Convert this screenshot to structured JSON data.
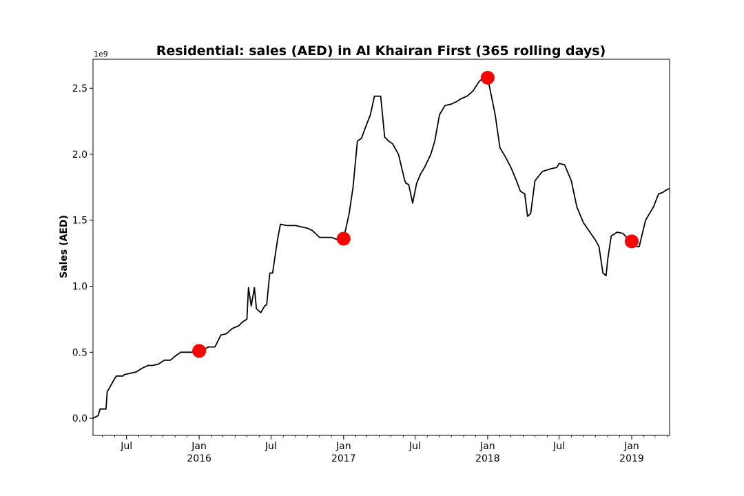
{
  "chart_data": {
    "type": "line",
    "title": "Residential: sales (AED) in Al Khairan First (365 rolling days)",
    "xlabel": "",
    "ylabel": "Sales (AED)",
    "y_scale_label": "1e9",
    "ylim": [
      -0.13,
      2.72
    ],
    "xlim": [
      "2015-04-07",
      "2019-04-07"
    ],
    "y_ticks": [
      0.0,
      0.5,
      1.0,
      1.5,
      2.0,
      2.5
    ],
    "y_tick_labels": [
      "0.0",
      "0.5",
      "1.0",
      "1.5",
      "2.0",
      "2.5"
    ],
    "x_ticks": [
      {
        "date": "2015-07-01",
        "label": "Jul",
        "sublabel": ""
      },
      {
        "date": "2016-01-01",
        "label": "Jan",
        "sublabel": "2016"
      },
      {
        "date": "2016-07-01",
        "label": "Jul",
        "sublabel": ""
      },
      {
        "date": "2017-01-01",
        "label": "Jan",
        "sublabel": "2017"
      },
      {
        "date": "2017-07-01",
        "label": "Jul",
        "sublabel": ""
      },
      {
        "date": "2018-01-01",
        "label": "Jan",
        "sublabel": "2018"
      },
      {
        "date": "2018-07-01",
        "label": "Jul",
        "sublabel": ""
      },
      {
        "date": "2019-01-01",
        "label": "Jan",
        "sublabel": "2019"
      }
    ],
    "grid": false,
    "line_color": "#000000",
    "marker_color": "#ff0000",
    "series": [
      {
        "x": [
          "2015-04-07",
          "2015-04-20",
          "2015-04-25",
          "2015-05-10",
          "2015-05-13",
          "2015-05-28",
          "2015-06-01",
          "2015-06-05",
          "2015-06-10",
          "2015-06-22",
          "2015-06-25",
          "2015-07-25",
          "2015-08-10",
          "2015-08-25",
          "2015-09-05",
          "2015-09-20",
          "2015-10-05",
          "2015-10-20",
          "2015-11-01",
          "2015-11-15",
          "2015-12-01",
          "2015-12-20",
          "2016-01-05",
          "2016-01-25",
          "2016-02-10",
          "2016-02-25",
          "2016-03-10",
          "2016-03-25",
          "2016-04-10",
          "2016-04-20",
          "2016-05-01",
          "2016-05-05",
          "2016-05-12",
          "2016-05-20",
          "2016-05-25",
          "2016-06-05",
          "2016-06-15",
          "2016-06-20",
          "2016-06-28",
          "2016-07-05",
          "2016-07-10",
          "2016-07-18",
          "2016-07-25",
          "2016-08-10",
          "2016-09-01",
          "2016-10-01",
          "2016-10-15",
          "2016-11-01",
          "2016-12-01",
          "2016-12-20",
          "2017-01-01",
          "2017-01-15",
          "2017-01-25",
          "2017-02-05",
          "2017-02-15",
          "2017-02-25",
          "2017-03-10",
          "2017-03-20",
          "2017-04-05",
          "2017-04-15",
          "2017-04-25",
          "2017-05-05",
          "2017-05-20",
          "2017-06-05",
          "2017-06-08",
          "2017-06-15",
          "2017-06-25",
          "2017-07-05",
          "2017-07-15",
          "2017-07-25",
          "2017-08-10",
          "2017-08-20",
          "2017-09-01",
          "2017-09-15",
          "2017-10-01",
          "2017-10-15",
          "2017-10-25",
          "2017-11-10",
          "2017-11-25",
          "2017-12-10",
          "2017-12-25",
          "2018-01-01",
          "2018-01-20",
          "2018-02-01",
          "2018-02-15",
          "2018-03-01",
          "2018-03-15",
          "2018-03-25",
          "2018-04-05",
          "2018-04-12",
          "2018-04-20",
          "2018-05-01",
          "2018-05-20",
          "2018-06-10",
          "2018-06-25",
          "2018-07-01",
          "2018-07-15",
          "2018-08-01",
          "2018-08-15",
          "2018-09-01",
          "2018-09-15",
          "2018-10-01",
          "2018-10-10",
          "2018-10-20",
          "2018-10-28",
          "2018-11-01",
          "2018-11-10",
          "2018-11-25",
          "2018-12-10",
          "2018-12-25",
          "2019-01-05",
          "2019-01-15",
          "2019-01-20",
          "2019-02-05",
          "2019-02-15",
          "2019-02-25",
          "2019-03-10",
          "2019-03-20",
          "2019-03-30",
          "2019-04-07"
        ],
        "y": [
          0.0,
          0.02,
          0.07,
          0.07,
          0.2,
          0.28,
          0.3,
          0.32,
          0.32,
          0.32,
          0.33,
          0.35,
          0.38,
          0.4,
          0.4,
          0.41,
          0.44,
          0.44,
          0.47,
          0.5,
          0.5,
          0.5,
          0.51,
          0.54,
          0.54,
          0.63,
          0.64,
          0.68,
          0.7,
          0.73,
          0.75,
          0.99,
          0.85,
          0.99,
          0.83,
          0.8,
          0.85,
          0.86,
          1.1,
          1.1,
          1.2,
          1.36,
          1.47,
          1.46,
          1.46,
          1.44,
          1.42,
          1.37,
          1.37,
          1.35,
          1.36,
          1.55,
          1.75,
          2.1,
          2.12,
          2.2,
          2.3,
          2.44,
          2.44,
          2.13,
          2.1,
          2.08,
          2.0,
          1.8,
          1.78,
          1.77,
          1.63,
          1.78,
          1.85,
          1.9,
          2.0,
          2.1,
          2.3,
          2.37,
          2.38,
          2.4,
          2.42,
          2.44,
          2.48,
          2.55,
          2.59,
          2.58,
          2.3,
          2.05,
          1.98,
          1.9,
          1.8,
          1.72,
          1.7,
          1.53,
          1.55,
          1.8,
          1.87,
          1.89,
          1.9,
          1.93,
          1.92,
          1.8,
          1.6,
          1.48,
          1.42,
          1.35,
          1.3,
          1.1,
          1.08,
          1.2,
          1.38,
          1.41,
          1.4,
          1.35,
          1.33,
          1.3,
          1.3,
          1.5,
          1.55,
          1.6,
          1.7,
          1.71,
          1.73,
          1.74
        ]
      }
    ],
    "markers": [
      {
        "x": "2016-01-01",
        "y": 0.51
      },
      {
        "x": "2017-01-01",
        "y": 1.36
      },
      {
        "x": "2018-01-01",
        "y": 2.58
      },
      {
        "x": "2019-01-01",
        "y": 1.34
      }
    ]
  }
}
